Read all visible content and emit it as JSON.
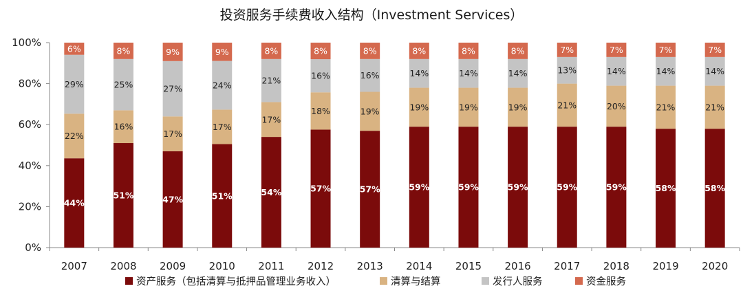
{
  "chart_data": {
    "type": "bar",
    "stacked": true,
    "title": "投资服务手续费收入结构（Investment Services）",
    "categories": [
      "2007",
      "2008",
      "2009",
      "2010",
      "2011",
      "2012",
      "2013",
      "2014",
      "2015",
      "2016",
      "2017",
      "2018",
      "2019",
      "2020"
    ],
    "ylim": [
      0,
      100
    ],
    "y_ticks": [
      "0%",
      "20%",
      "40%",
      "60%",
      "80%",
      "100%"
    ],
    "grid": false,
    "legend_position": "bottom",
    "series": [
      {
        "name": "资产服务（包括清算与抵押品管理业务收入）",
        "color": "#7b0b0b",
        "label_color": "#ffffff",
        "label_bold": true,
        "values": [
          44,
          51,
          47,
          51,
          54,
          57,
          57,
          59,
          59,
          59,
          59,
          59,
          58,
          58
        ]
      },
      {
        "name": "清算与结算",
        "color": "#d9b382",
        "label_color": "#222222",
        "label_bold": false,
        "values": [
          22,
          16,
          17,
          17,
          17,
          18,
          19,
          19,
          19,
          19,
          21,
          20,
          21,
          21
        ]
      },
      {
        "name": "发行人服务",
        "color": "#c4c4c4",
        "label_color": "#222222",
        "label_bold": false,
        "values": [
          29,
          25,
          27,
          24,
          21,
          16,
          16,
          14,
          14,
          14,
          13,
          14,
          14,
          14
        ]
      },
      {
        "name": "资金服务",
        "color": "#d4694e",
        "label_color": "#ffffff",
        "label_bold": false,
        "values": [
          6,
          8,
          9,
          9,
          8,
          8,
          8,
          8,
          8,
          8,
          7,
          7,
          7,
          7
        ]
      }
    ]
  }
}
